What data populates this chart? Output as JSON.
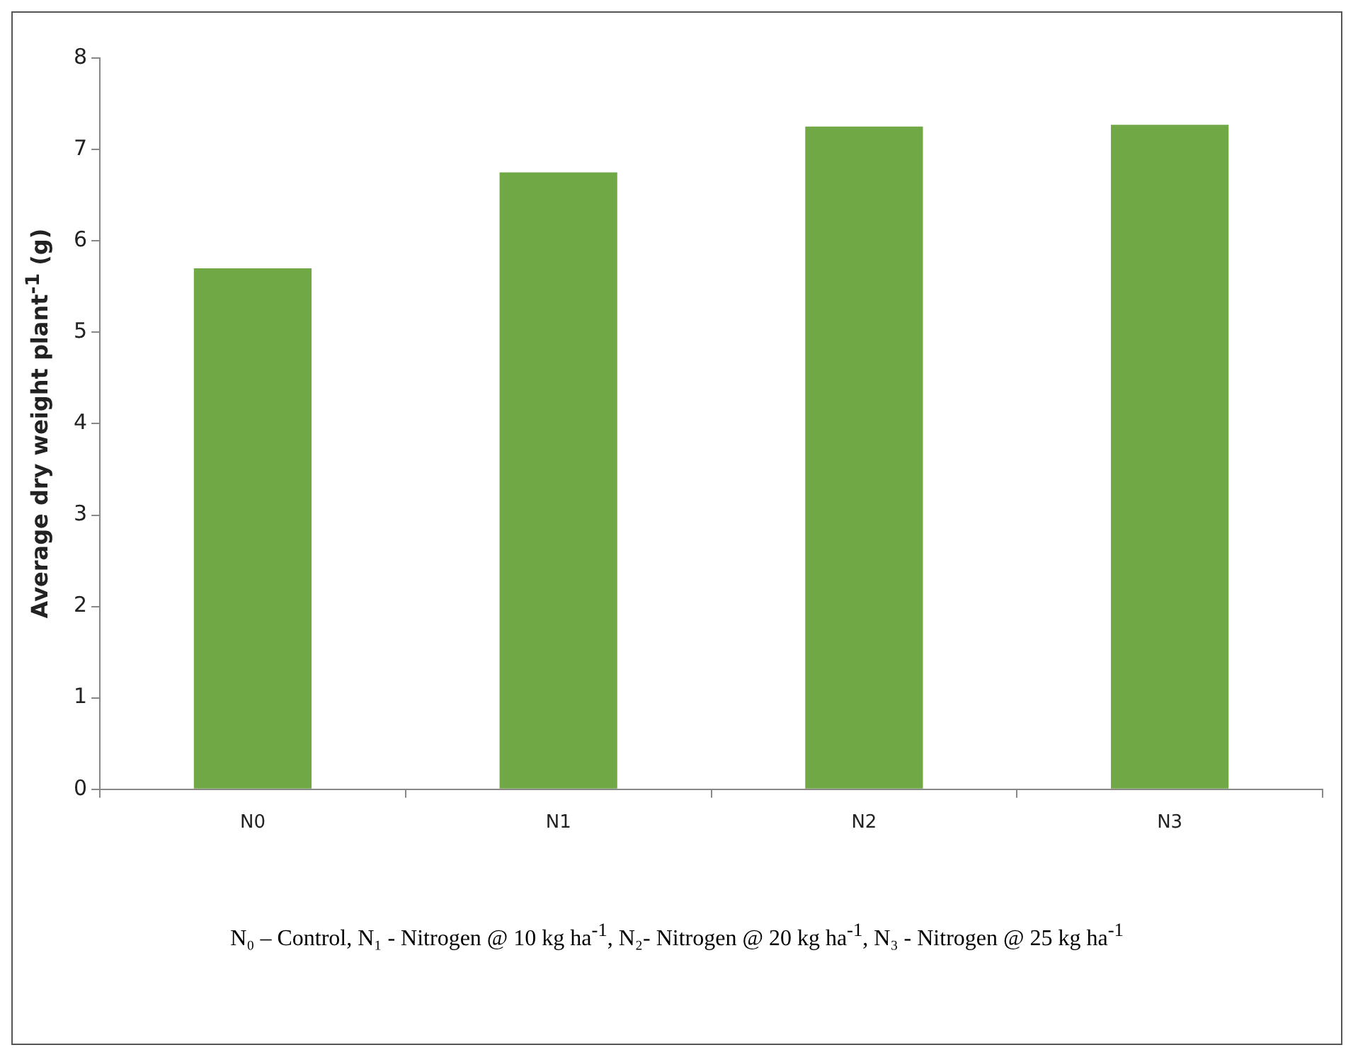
{
  "chart_data": {
    "type": "bar",
    "ylabel": "Average dry weight plant$^{-1}$ (g)",
    "categories": [
      "N0",
      "N1",
      "N2",
      "N3"
    ],
    "values": [
      5.7,
      6.75,
      7.25,
      7.27
    ],
    "color": "#70a845",
    "ylim": [
      0,
      8
    ],
    "yticks": [
      0,
      1,
      2,
      3,
      4,
      5,
      6,
      7,
      8
    ],
    "grid": false,
    "legend": false,
    "annotations": [
      "N₀ – Control, N₁ - Nitrogen @ 10 kg ha$^{-1}$, N₂- Nitrogen @ 20 kg ha$^{-1}$, N₃ - Nitrogen @ 25 kg ha$^{-1}$"
    ]
  }
}
